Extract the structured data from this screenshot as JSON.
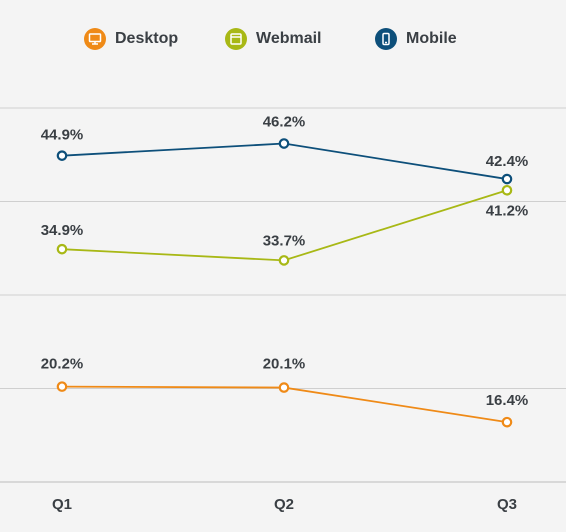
{
  "chart_data": {
    "type": "line",
    "categories": [
      "Q1",
      "Q2",
      "Q3"
    ],
    "series": [
      {
        "name": "Desktop",
        "color": "#ef8a17",
        "icon": "desktop-icon",
        "values": [
          20.2,
          20.1,
          16.4
        ],
        "labels": [
          "20.2%",
          "20.1%",
          "16.4%"
        ]
      },
      {
        "name": "Webmail",
        "color": "#a8b815",
        "icon": "webmail-icon",
        "values": [
          34.9,
          33.7,
          41.2
        ],
        "labels": [
          "34.9%",
          "33.7%",
          "41.2%"
        ]
      },
      {
        "name": "Mobile",
        "color": "#0d4f7a",
        "icon": "mobile-icon",
        "values": [
          44.9,
          46.2,
          42.4
        ],
        "labels": [
          "44.9%",
          "46.2%",
          "42.4%"
        ]
      }
    ],
    "ylim": [
      10,
      60
    ],
    "gridlines": [
      10,
      20,
      30,
      40,
      50
    ],
    "grid": true,
    "legend_position": "top"
  }
}
